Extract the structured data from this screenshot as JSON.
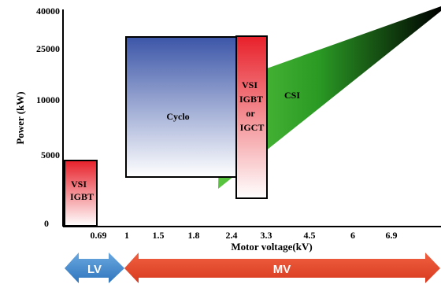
{
  "chart_data": {
    "type": "area",
    "xlabel": "Motor voltage(kV)",
    "ylabel": "Power (kW)",
    "x_ticks": [
      "0.69",
      "1",
      "1.5",
      "1.8",
      "2.4",
      "3.3",
      "4.5",
      "6",
      "6.9"
    ],
    "y_ticks": [
      "0",
      "5000",
      "10000",
      "25000",
      "40000"
    ],
    "regions": [
      {
        "label": [
          "VSI",
          "IGBT"
        ],
        "color_top": "#e8202a",
        "color_bottom": "#ffffff",
        "voltage_kv": [
          0.69,
          0.69
        ],
        "power_kw": [
          0,
          4500
        ]
      },
      {
        "label": [
          "Cyclo"
        ],
        "color_top": "#3c56a8",
        "color_bottom": "#ffffff",
        "voltage_kv": [
          1,
          2.4
        ],
        "power_kw": [
          3000,
          25000
        ]
      },
      {
        "label": [
          "VSI",
          "IGBT",
          "or",
          "IGCT"
        ],
        "color_top": "#e8202a",
        "color_bottom": "#ffffff",
        "voltage_kv": [
          2.4,
          3.3
        ],
        "power_kw": [
          2000,
          25000
        ]
      },
      {
        "label": [
          "CSI"
        ],
        "color_start": "#4fc03a",
        "color_end": "#000000",
        "voltage_kv": [
          2.4,
          6.9
        ],
        "power_kw_lower": [
          2500,
          40000
        ],
        "power_kw_upper": [
          12000,
          40000
        ]
      }
    ],
    "ranges": [
      {
        "label": "LV",
        "color": "#4a90d0"
      },
      {
        "label": "MV",
        "color": "#e84a30"
      }
    ]
  }
}
